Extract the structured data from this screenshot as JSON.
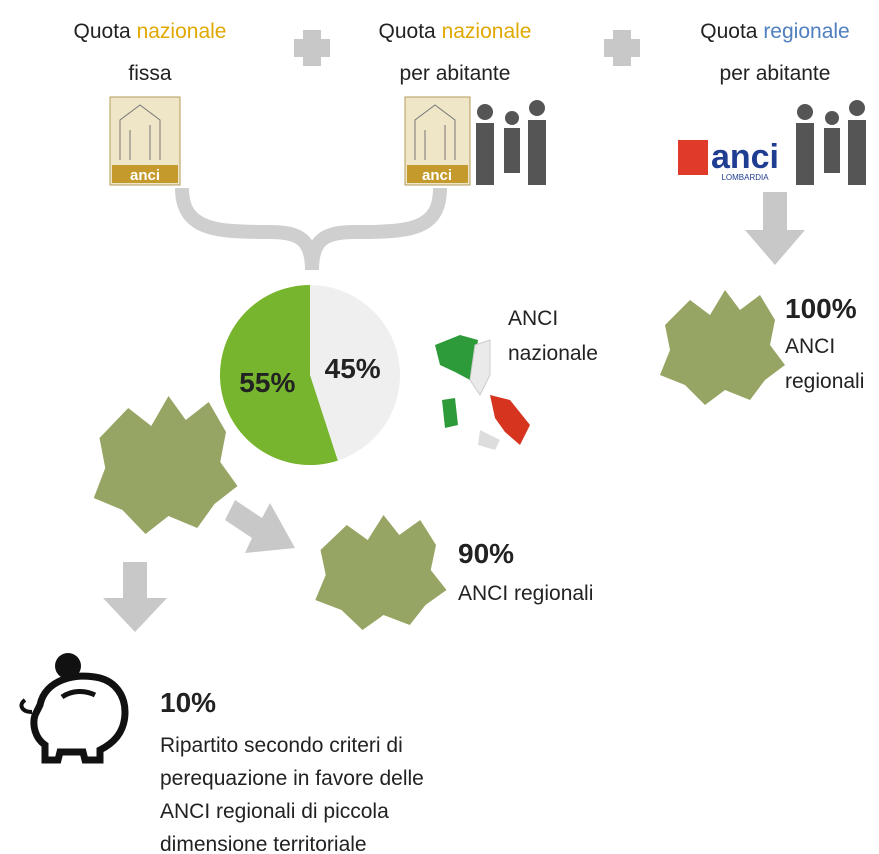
{
  "columns": [
    {
      "line1": [
        "Quota ",
        "nazionale"
      ],
      "line2": "fissa"
    },
    {
      "line1": [
        "Quota ",
        "nazionale"
      ],
      "line2": "per abitante"
    },
    {
      "line1": [
        "Quota ",
        "regionale"
      ],
      "line2": "per abitante"
    }
  ],
  "logos": [
    "anci",
    "anci",
    "anci",
    "LOMBARDIA"
  ],
  "pie": {
    "values": [
      55,
      45
    ],
    "value_labels": [
      "55%",
      "45%"
    ],
    "colors": [
      "#77b52e",
      "#efefef"
    ]
  },
  "national": [
    "ANCI",
    "nazionale"
  ],
  "regional_full": {
    "percent": "100%",
    "lines": [
      "ANCI",
      "regionali"
    ]
  },
  "regional_90": {
    "percent": "90%",
    "label": "ANCI regionali"
  },
  "equalization": {
    "percent": "10%",
    "lines": [
      "Ripartito secondo criteri di",
      "perequazione in favore delle",
      "ANCI regionali di piccola",
      "dimensione territoriale"
    ]
  }
}
